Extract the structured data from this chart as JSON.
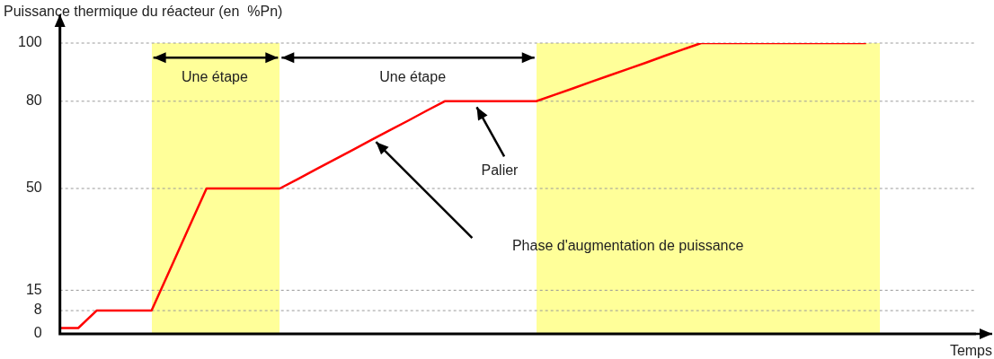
{
  "chart_data": {
    "type": "line",
    "ylabel": "Puissance thermique du réacteur (en  %Pn)",
    "xlabel": "Temps",
    "categories": [
      null,
      null,
      null,
      null,
      null,
      null,
      null,
      null,
      null,
      null,
      null,
      null,
      null,
      null,
      null,
      null,
      null,
      null,
      null,
      null,
      null,
      null,
      null,
      null,
      null,
      null,
      null,
      null,
      null,
      null,
      null,
      null,
      null,
      null,
      null,
      null,
      null,
      null,
      null,
      null,
      null,
      null,
      null,
      null,
      null,
      null,
      null,
      null,
      null,
      null,
      null
    ],
    "series": [
      {
        "color": "#ff0000",
        "values": [
          2,
          2,
          8,
          8,
          8,
          8,
          22,
          36,
          50,
          50,
          50,
          50,
          50,
          53.3,
          56.7,
          60,
          63.3,
          66.7,
          70,
          73.3,
          76.7,
          80,
          80,
          80,
          80,
          80,
          80,
          82.2,
          84.4,
          86.7,
          88.9,
          91.1,
          93.3,
          95.6,
          97.8,
          100,
          100,
          100,
          100,
          100,
          100,
          100,
          100,
          100,
          100,
          null,
          null,
          null,
          null,
          null,
          null
        ]
      }
    ],
    "ylim": [
      0,
      100
    ],
    "yticks": [
      0,
      8,
      15,
      50,
      80,
      100
    ],
    "tick_labels": "y",
    "grid": "y",
    "marker": "none",
    "line_style": "solid",
    "annotations": [
      "Une étape",
      "Une étape",
      "Palier",
      "Phase d'augmentation de puissance"
    ]
  }
}
